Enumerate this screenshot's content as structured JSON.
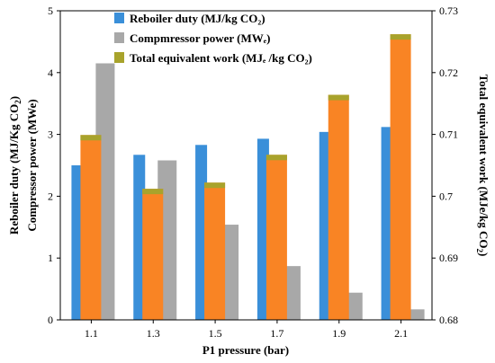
{
  "chart_data": {
    "type": "bar",
    "categories": [
      "1.1",
      "1.3",
      "1.5",
      "1.7",
      "1.9",
      "2.1"
    ],
    "series": [
      {
        "name": "Reboiler duty (MJ/kg CO₂)",
        "axis": "left",
        "color": "#3a8fd9",
        "values": [
          2.5,
          2.67,
          2.83,
          2.93,
          3.04,
          3.12
        ]
      },
      {
        "name": "Compmressor power (MWₑ)",
        "axis": "left",
        "color": "#a8a8a8",
        "values": [
          4.15,
          2.58,
          1.54,
          0.87,
          0.44,
          0.17
        ]
      },
      {
        "name": "Total equivalent work (MJₑ /kg CO₂)",
        "axis": "right",
        "color": "#f98424",
        "legend_color": "#a8a32c",
        "values": [
          0.7099,
          0.7012,
          0.7022,
          0.7067,
          0.7164,
          0.7262
        ]
      }
    ],
    "xlabel": "P1 pressure (bar)",
    "ylabel_left_1": "Reboiler duty (MJ/Kg CO",
    "ylabel_left_1_sub": "2",
    "ylabel_left_1_end": ")",
    "ylabel_left_2": "Compressor power (MWe)",
    "ylabel_right": "Total equivalent work (MJe/kg CO",
    "ylabel_right_sub": "2",
    "ylabel_right_end": ")",
    "ylim_left": [
      0,
      5
    ],
    "yticks_left": [
      "0",
      "1",
      "2",
      "3",
      "4",
      "5"
    ],
    "ylim_right": [
      0.68,
      0.73
    ],
    "yticks_right": [
      "0.68",
      "0.69",
      "0.7",
      "0.71",
      "0.72",
      "0.73"
    ],
    "legend_position": "top-left",
    "grid": false
  }
}
